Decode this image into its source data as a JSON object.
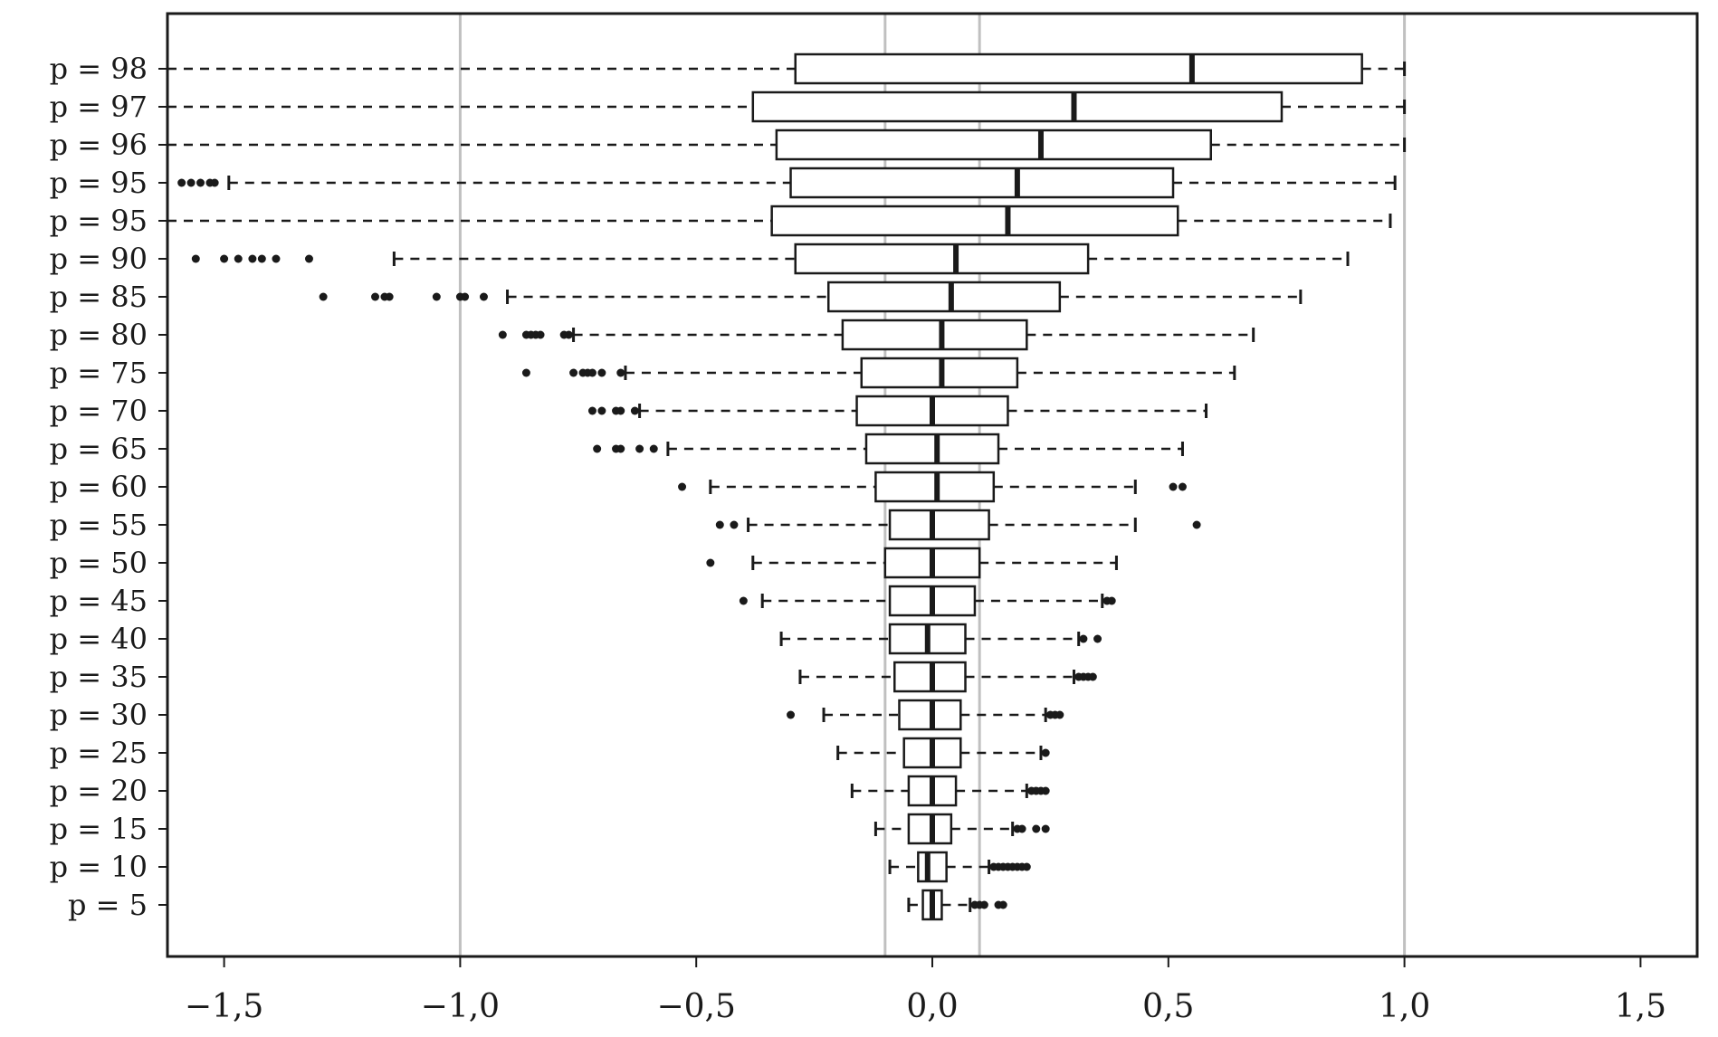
{
  "chart_data": {
    "type": "boxplot",
    "orientation": "horizontal",
    "title": "",
    "xlabel": "",
    "ylabel": "",
    "xlim": [
      -1.62,
      1.62
    ],
    "x_ticks": [
      -1.5,
      -1.0,
      -0.5,
      0.0,
      0.5,
      1.0,
      1.5
    ],
    "x_tick_labels": [
      "−1,5",
      "−1,0",
      "−0,5",
      "0,0",
      "0,5",
      "1,0",
      "1,5"
    ],
    "reference_lines": [
      -1.0,
      -0.1,
      0.1,
      1.0
    ],
    "reference_line_color": "#c0c0c0",
    "box_color": "#1a1a1a",
    "grid": false,
    "categories": [
      "p = 98",
      "p = 97",
      "p = 96",
      "p = 95",
      "p = 95",
      "p = 90",
      "p = 85",
      "p = 80",
      "p = 75",
      "p = 70",
      "p = 65",
      "p = 60",
      "p = 55",
      "p = 50",
      "p = 45",
      "p = 40",
      "p = 35",
      "p = 30",
      "p = 25",
      "p = 20",
      "p = 15",
      "p = 10",
      "p = 5"
    ],
    "boxes": [
      {
        "whisker_low": -1.62,
        "q1": -0.29,
        "median": 0.55,
        "q3": 0.91,
        "whisker_high": 1.0,
        "outliers": []
      },
      {
        "whisker_low": -1.62,
        "q1": -0.38,
        "median": 0.3,
        "q3": 0.74,
        "whisker_high": 1.0,
        "outliers": []
      },
      {
        "whisker_low": -1.62,
        "q1": -0.33,
        "median": 0.23,
        "q3": 0.59,
        "whisker_high": 1.0,
        "outliers": []
      },
      {
        "whisker_low": -1.49,
        "q1": -0.3,
        "median": 0.18,
        "q3": 0.51,
        "whisker_high": 0.98,
        "outliers": [
          -1.59,
          -1.57,
          -1.55,
          -1.53,
          -1.52
        ]
      },
      {
        "whisker_low": -1.62,
        "q1": -0.34,
        "median": 0.16,
        "q3": 0.52,
        "whisker_high": 0.97,
        "outliers": []
      },
      {
        "whisker_low": -1.14,
        "q1": -0.29,
        "median": 0.05,
        "q3": 0.33,
        "whisker_high": 0.88,
        "outliers": [
          -1.56,
          -1.5,
          -1.47,
          -1.44,
          -1.42,
          -1.39,
          -1.32
        ]
      },
      {
        "whisker_low": -0.9,
        "q1": -0.22,
        "median": 0.04,
        "q3": 0.27,
        "whisker_high": 0.78,
        "outliers": [
          -1.29,
          -1.18,
          -1.16,
          -1.15,
          -1.05,
          -1.0,
          -0.99,
          -0.95
        ]
      },
      {
        "whisker_low": -0.76,
        "q1": -0.19,
        "median": 0.02,
        "q3": 0.2,
        "whisker_high": 0.68,
        "outliers": [
          -0.91,
          -0.86,
          -0.85,
          -0.84,
          -0.83,
          -0.78,
          -0.77
        ]
      },
      {
        "whisker_low": -0.65,
        "q1": -0.15,
        "median": 0.02,
        "q3": 0.18,
        "whisker_high": 0.64,
        "outliers": [
          -0.86,
          -0.76,
          -0.74,
          -0.73,
          -0.72,
          -0.7,
          -0.66
        ]
      },
      {
        "whisker_low": -0.62,
        "q1": -0.16,
        "median": 0.0,
        "q3": 0.16,
        "whisker_high": 0.58,
        "outliers": [
          -0.72,
          -0.7,
          -0.67,
          -0.66,
          -0.63
        ]
      },
      {
        "whisker_low": -0.56,
        "q1": -0.14,
        "median": 0.01,
        "q3": 0.14,
        "whisker_high": 0.53,
        "outliers": [
          -0.71,
          -0.67,
          -0.66,
          -0.62,
          -0.59
        ]
      },
      {
        "whisker_low": -0.47,
        "q1": -0.12,
        "median": 0.01,
        "q3": 0.13,
        "whisker_high": 0.43,
        "outliers": [
          -0.53,
          0.51,
          0.53
        ]
      },
      {
        "whisker_low": -0.39,
        "q1": -0.09,
        "median": 0.0,
        "q3": 0.12,
        "whisker_high": 0.43,
        "outliers": [
          -0.45,
          -0.42,
          0.56
        ]
      },
      {
        "whisker_low": -0.38,
        "q1": -0.1,
        "median": 0.0,
        "q3": 0.1,
        "whisker_high": 0.39,
        "outliers": [
          -0.47
        ]
      },
      {
        "whisker_low": -0.36,
        "q1": -0.09,
        "median": 0.0,
        "q3": 0.09,
        "whisker_high": 0.36,
        "outliers": [
          -0.4,
          0.37,
          0.38
        ]
      },
      {
        "whisker_low": -0.32,
        "q1": -0.09,
        "median": -0.01,
        "q3": 0.07,
        "whisker_high": 0.31,
        "outliers": [
          0.32,
          0.35
        ]
      },
      {
        "whisker_low": -0.28,
        "q1": -0.08,
        "median": 0.0,
        "q3": 0.07,
        "whisker_high": 0.3,
        "outliers": [
          0.31,
          0.32,
          0.33,
          0.34
        ]
      },
      {
        "whisker_low": -0.23,
        "q1": -0.07,
        "median": 0.0,
        "q3": 0.06,
        "whisker_high": 0.24,
        "outliers": [
          -0.3,
          0.25,
          0.26,
          0.27
        ]
      },
      {
        "whisker_low": -0.2,
        "q1": -0.06,
        "median": 0.0,
        "q3": 0.06,
        "whisker_high": 0.23,
        "outliers": [
          0.24
        ]
      },
      {
        "whisker_low": -0.17,
        "q1": -0.05,
        "median": 0.0,
        "q3": 0.05,
        "whisker_high": 0.2,
        "outliers": [
          0.21,
          0.22,
          0.23,
          0.24
        ]
      },
      {
        "whisker_low": -0.12,
        "q1": -0.05,
        "median": 0.0,
        "q3": 0.04,
        "whisker_high": 0.17,
        "outliers": [
          0.18,
          0.19,
          0.22,
          0.24
        ]
      },
      {
        "whisker_low": -0.09,
        "q1": -0.03,
        "median": -0.01,
        "q3": 0.03,
        "whisker_high": 0.12,
        "outliers": [
          0.13,
          0.14,
          0.15,
          0.16,
          0.17,
          0.18,
          0.19,
          0.2
        ]
      },
      {
        "whisker_low": -0.05,
        "q1": -0.02,
        "median": 0.0,
        "q3": 0.02,
        "whisker_high": 0.08,
        "outliers": [
          0.09,
          0.1,
          0.11,
          0.14,
          0.15
        ]
      }
    ]
  }
}
